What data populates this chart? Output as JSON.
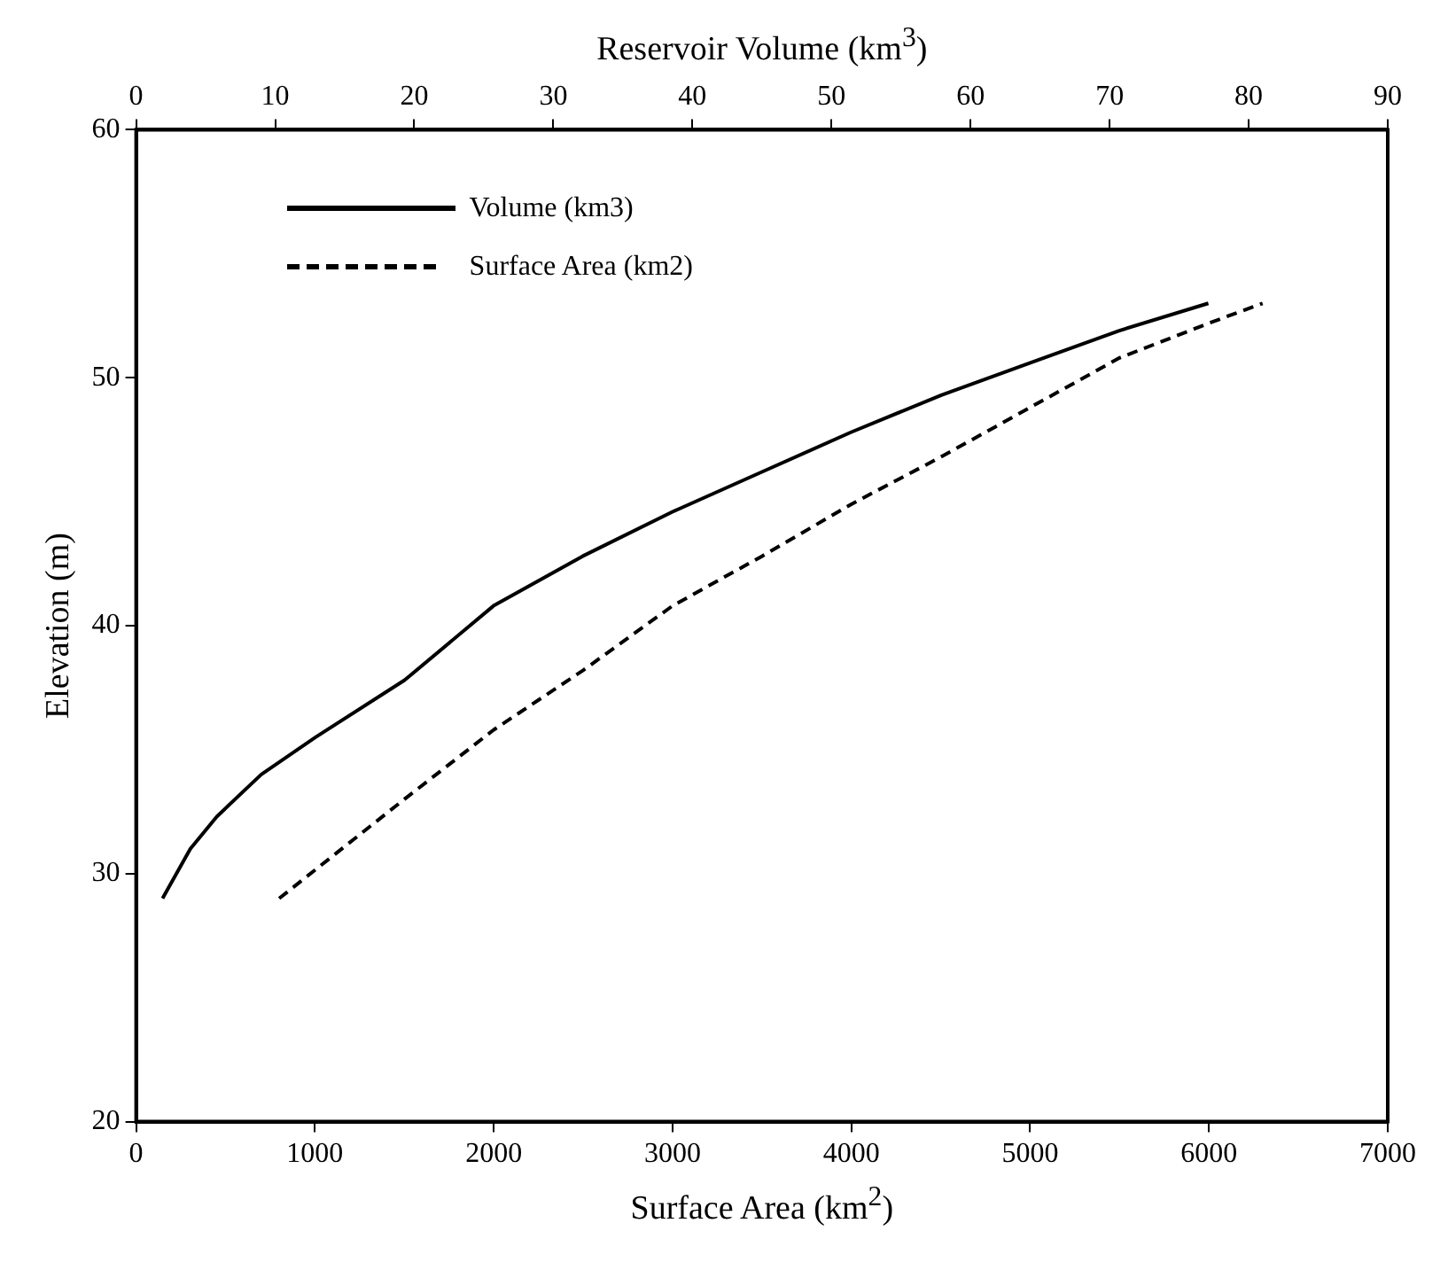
{
  "chart_data": {
    "type": "line",
    "xlabel": "Surface Area (km$^{2}$)",
    "x2label": "Reservoir Volume (km$^{3}$)",
    "ylabel": "Elevation (m)",
    "xlim": [
      0,
      7000
    ],
    "xticks": [
      0,
      1000,
      2000,
      3000,
      4000,
      5000,
      6000,
      7000
    ],
    "x2lim": [
      0,
      90
    ],
    "x2ticks": [
      0,
      10,
      20,
      30,
      40,
      50,
      60,
      70,
      80,
      90
    ],
    "ylim": [
      20,
      60
    ],
    "yticks": [
      20,
      30,
      40,
      50,
      60
    ],
    "grid": false,
    "legend": "top left",
    "marker": "none",
    "series": [
      {
        "name": "Volume (km3)",
        "color": "#000000",
        "line_style": "solid",
        "axis": "x2",
        "x": [
          1.9,
          3.9,
          5.8,
          9,
          12.9,
          19.3,
          25.7,
          32.1,
          38.6,
          45,
          51.4,
          57.9,
          64.3,
          70.7,
          77.1
        ],
        "values": [
          29,
          31,
          32.3,
          34,
          35.5,
          37.8,
          40.8,
          42.8,
          44.6,
          46.2,
          47.8,
          49.3,
          50.6,
          51.9,
          53
        ]
      },
      {
        "name": "Surface Area (km2)",
        "color": "#000000",
        "line_style": "dashed",
        "x": [
          800,
          1500,
          2000,
          2500,
          3000,
          3500,
          4000,
          4500,
          5000,
          5500,
          6000,
          6300
        ],
        "values": [
          29,
          33,
          35.8,
          38.2,
          40.8,
          42.8,
          44.9,
          46.8,
          48.8,
          50.8,
          52.2,
          53
        ]
      }
    ]
  }
}
